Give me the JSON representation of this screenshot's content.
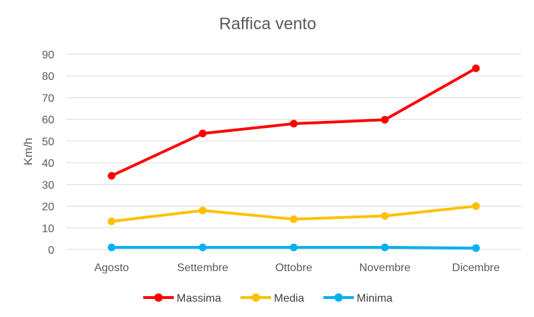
{
  "chart_data": {
    "type": "line",
    "title": "Raffica vento",
    "xlabel": "",
    "ylabel": "Km/h",
    "categories": [
      "Agosto",
      "Settembre",
      "Ottobre",
      "Novembre",
      "Dicembre"
    ],
    "ylim": [
      0,
      90
    ],
    "yticks": [
      0,
      10,
      20,
      30,
      40,
      50,
      60,
      70,
      80,
      90
    ],
    "grid": true,
    "legend_position": "bottom",
    "series": [
      {
        "name": "Massima",
        "color": "#ff0000",
        "values": [
          34,
          53.5,
          58,
          59.8,
          83.5
        ]
      },
      {
        "name": "Media",
        "color": "#ffc000",
        "values": [
          13,
          18,
          14,
          15.5,
          20
        ]
      },
      {
        "name": "Minima",
        "color": "#00b0f0",
        "values": [
          1,
          1,
          1,
          1,
          0.7
        ]
      }
    ]
  }
}
